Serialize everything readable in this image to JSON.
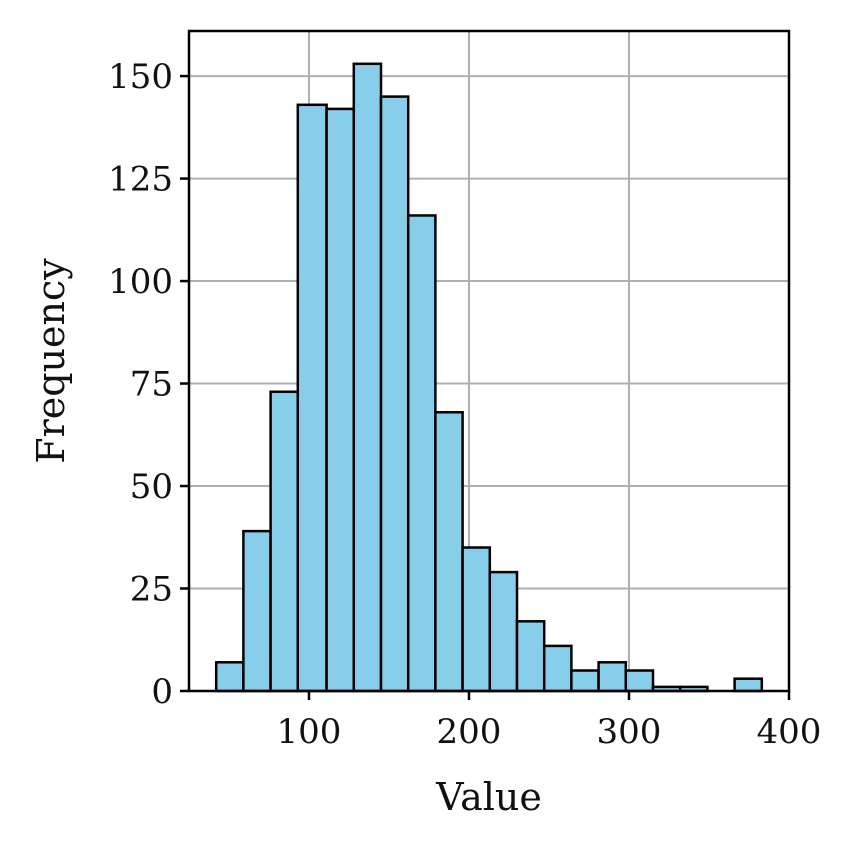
{
  "chart_data": {
    "type": "bar",
    "subtype": "histogram",
    "title": "",
    "xlabel": "Value",
    "ylabel": "Frequency",
    "xlim": [
      25,
      400
    ],
    "ylim": [
      0,
      161
    ],
    "xticks": [
      100,
      200,
      300,
      400
    ],
    "yticks": [
      0,
      25,
      50,
      75,
      100,
      125,
      150
    ],
    "grid": true,
    "bar_color": "#87CEEB",
    "edge_color": "#000000",
    "bins": [
      {
        "start": 42,
        "end": 59,
        "value": 7
      },
      {
        "start": 59,
        "end": 76,
        "value": 39
      },
      {
        "start": 76,
        "end": 93,
        "value": 73
      },
      {
        "start": 93,
        "end": 111,
        "value": 143
      },
      {
        "start": 111,
        "end": 128,
        "value": 142
      },
      {
        "start": 128,
        "end": 145,
        "value": 153
      },
      {
        "start": 145,
        "end": 162,
        "value": 145
      },
      {
        "start": 162,
        "end": 179,
        "value": 116
      },
      {
        "start": 179,
        "end": 196,
        "value": 68
      },
      {
        "start": 196,
        "end": 213,
        "value": 35
      },
      {
        "start": 213,
        "end": 230,
        "value": 29
      },
      {
        "start": 230,
        "end": 247,
        "value": 17
      },
      {
        "start": 247,
        "end": 264,
        "value": 11
      },
      {
        "start": 264,
        "end": 281,
        "value": 5
      },
      {
        "start": 281,
        "end": 298,
        "value": 7
      },
      {
        "start": 298,
        "end": 315,
        "value": 5
      },
      {
        "start": 315,
        "end": 332,
        "value": 1
      },
      {
        "start": 332,
        "end": 349,
        "value": 1
      },
      {
        "start": 349,
        "end": 366,
        "value": 0
      },
      {
        "start": 366,
        "end": 383,
        "value": 3
      }
    ]
  }
}
